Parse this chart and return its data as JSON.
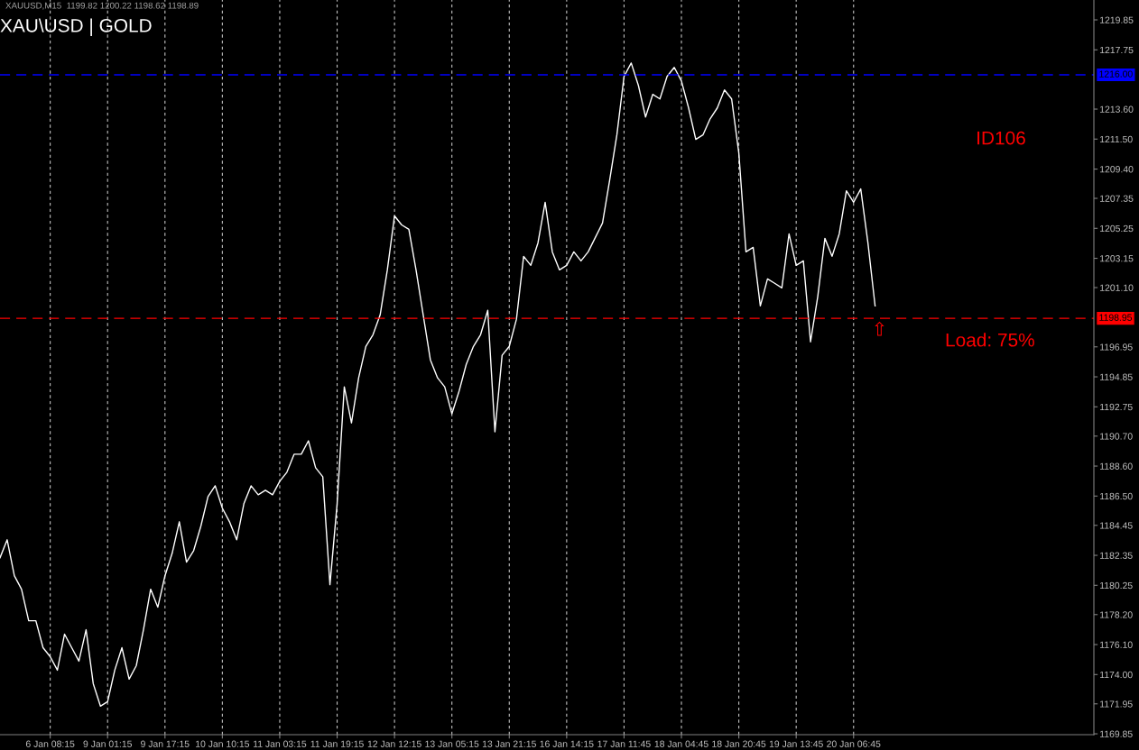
{
  "chart_data": {
    "type": "line",
    "annotations": [
      "XAUUSD,M15  1199.82 1200.22 1198.62 1198.89",
      "XAU\\USD | GOLD",
      "ID106",
      "Load: 75%",
      "⇧"
    ],
    "categories": [
      null,
      null,
      null,
      null,
      null,
      null,
      null,
      "6 Jan 08:15",
      null,
      null,
      null,
      null,
      null,
      null,
      null,
      "9 Jan 01:15",
      null,
      null,
      null,
      null,
      null,
      null,
      null,
      "9 Jan 17:15",
      null,
      null,
      null,
      null,
      null,
      null,
      null,
      "10 Jan 10:15",
      null,
      null,
      null,
      null,
      null,
      null,
      null,
      "11 Jan 03:15",
      null,
      null,
      null,
      null,
      null,
      null,
      null,
      "11 Jan 19:15",
      null,
      null,
      null,
      null,
      null,
      null,
      null,
      "12 Jan 12:15",
      null,
      null,
      null,
      null,
      null,
      null,
      null,
      "13 Jan 05:15",
      null,
      null,
      null,
      null,
      null,
      null,
      null,
      "13 Jan 21:15",
      null,
      null,
      null,
      null,
      null,
      null,
      null,
      "16 Jan 14:15",
      null,
      null,
      null,
      null,
      null,
      null,
      null,
      "17 Jan 11:45",
      null,
      null,
      null,
      null,
      null,
      null,
      null,
      "18 Jan 04:45",
      null,
      null,
      null,
      null,
      null,
      null,
      null,
      "18 Jan 20:45",
      null,
      null,
      null,
      null,
      null,
      null,
      null,
      "19 Jan 13:45",
      null,
      null,
      null,
      null,
      null,
      null,
      null,
      "20 Jan 06:45",
      null,
      null,
      null
    ],
    "series": [
      {
        "color": "#ffffff",
        "values": [
          1182.18,
          1183.44,
          1180.92,
          1179.98,
          1177.77,
          1177.77,
          1175.88,
          1175.25,
          1174.31,
          1176.83,
          1175.88,
          1174.94,
          1177.14,
          1173.36,
          1171.79,
          1172.1,
          1174.31,
          1175.88,
          1173.68,
          1174.62,
          1177.14,
          1179.98,
          1178.72,
          1180.92,
          1182.49,
          1184.7,
          1181.87,
          1182.68,
          1184.39,
          1186.46,
          1187.22,
          1185.65,
          1184.7,
          1183.44,
          1185.96,
          1187.22,
          1186.59,
          1186.91,
          1186.59,
          1187.54,
          1188.17,
          1189.43,
          1189.43,
          1190.37,
          1188.48,
          1187.85,
          1180.29,
          1185.96,
          1194.15,
          1191.63,
          1194.78,
          1196.98,
          1197.8,
          1199.19,
          1202.34,
          1206.12,
          1205.49,
          1205.18,
          1202.34,
          1199.19,
          1196.04,
          1194.78,
          1194.15,
          1192.26,
          1193.84,
          1195.72,
          1196.98,
          1197.8,
          1199.51,
          1191.0,
          1196.36,
          1196.98,
          1198.88,
          1203.29,
          1202.66,
          1204.23,
          1207.07,
          1203.6,
          1202.34,
          1202.66,
          1203.6,
          1202.97,
          1203.6,
          1204.61,
          1205.62,
          1208.64,
          1211.79,
          1215.89,
          1216.83,
          1215.26,
          1213.05,
          1214.63,
          1214.31,
          1215.89,
          1216.52,
          1215.57,
          1213.68,
          1211.48,
          1211.79,
          1212.92,
          1213.68,
          1214.94,
          1214.31,
          1210.53,
          1203.6,
          1203.92,
          1199.82,
          1201.71,
          1201.4,
          1201.08,
          1204.86,
          1202.66,
          1202.97,
          1197.3,
          1200.45,
          1204.55,
          1203.29,
          1204.86,
          1207.88,
          1207.07,
          1208.01,
          1204.23,
          1199.82
        ]
      }
    ],
    "ylim": [
      1169.79,
      1221.24
    ],
    "yticks": [
      {
        "value": 1219.85,
        "label": "1219.85"
      },
      {
        "value": 1217.75,
        "label": "1217.75"
      },
      {
        "value": 1213.6,
        "label": "1213.60"
      },
      {
        "value": 1211.5,
        "label": "1211.50"
      },
      {
        "value": 1209.4,
        "label": "1209.40"
      },
      {
        "value": 1207.35,
        "label": "1207.35"
      },
      {
        "value": 1205.25,
        "label": "1205.25"
      },
      {
        "value": 1203.15,
        "label": "1203.15"
      },
      {
        "value": 1201.1,
        "label": "1201.10"
      },
      {
        "value": 1196.95,
        "label": "1196.95"
      },
      {
        "value": 1194.85,
        "label": "1194.85"
      },
      {
        "value": 1192.75,
        "label": "1192.75"
      },
      {
        "value": 1190.7,
        "label": "1190.70"
      },
      {
        "value": 1188.6,
        "label": "1188.60"
      },
      {
        "value": 1186.5,
        "label": "1186.50"
      },
      {
        "value": 1184.45,
        "label": "1184.45"
      },
      {
        "value": 1182.35,
        "label": "1182.35"
      },
      {
        "value": 1180.25,
        "label": "1180.25"
      },
      {
        "value": 1178.2,
        "label": "1178.20"
      },
      {
        "value": 1176.1,
        "label": "1176.10"
      },
      {
        "value": 1174,
        "label": "1174.00"
      },
      {
        "value": 1171.95,
        "label": "1171.95"
      },
      {
        "value": 1169.85,
        "label": "1169.85"
      }
    ],
    "ref_lines": [
      {
        "axis": "y",
        "value": 1216.0,
        "label": "1216.00",
        "color": "#0000ff",
        "line_style": "dashed"
      },
      {
        "axis": "y",
        "value": 1198.95,
        "label": "1198.95",
        "color": "#ff0000",
        "line_style": "dashed"
      }
    ],
    "grid": "x",
    "legend": false
  }
}
